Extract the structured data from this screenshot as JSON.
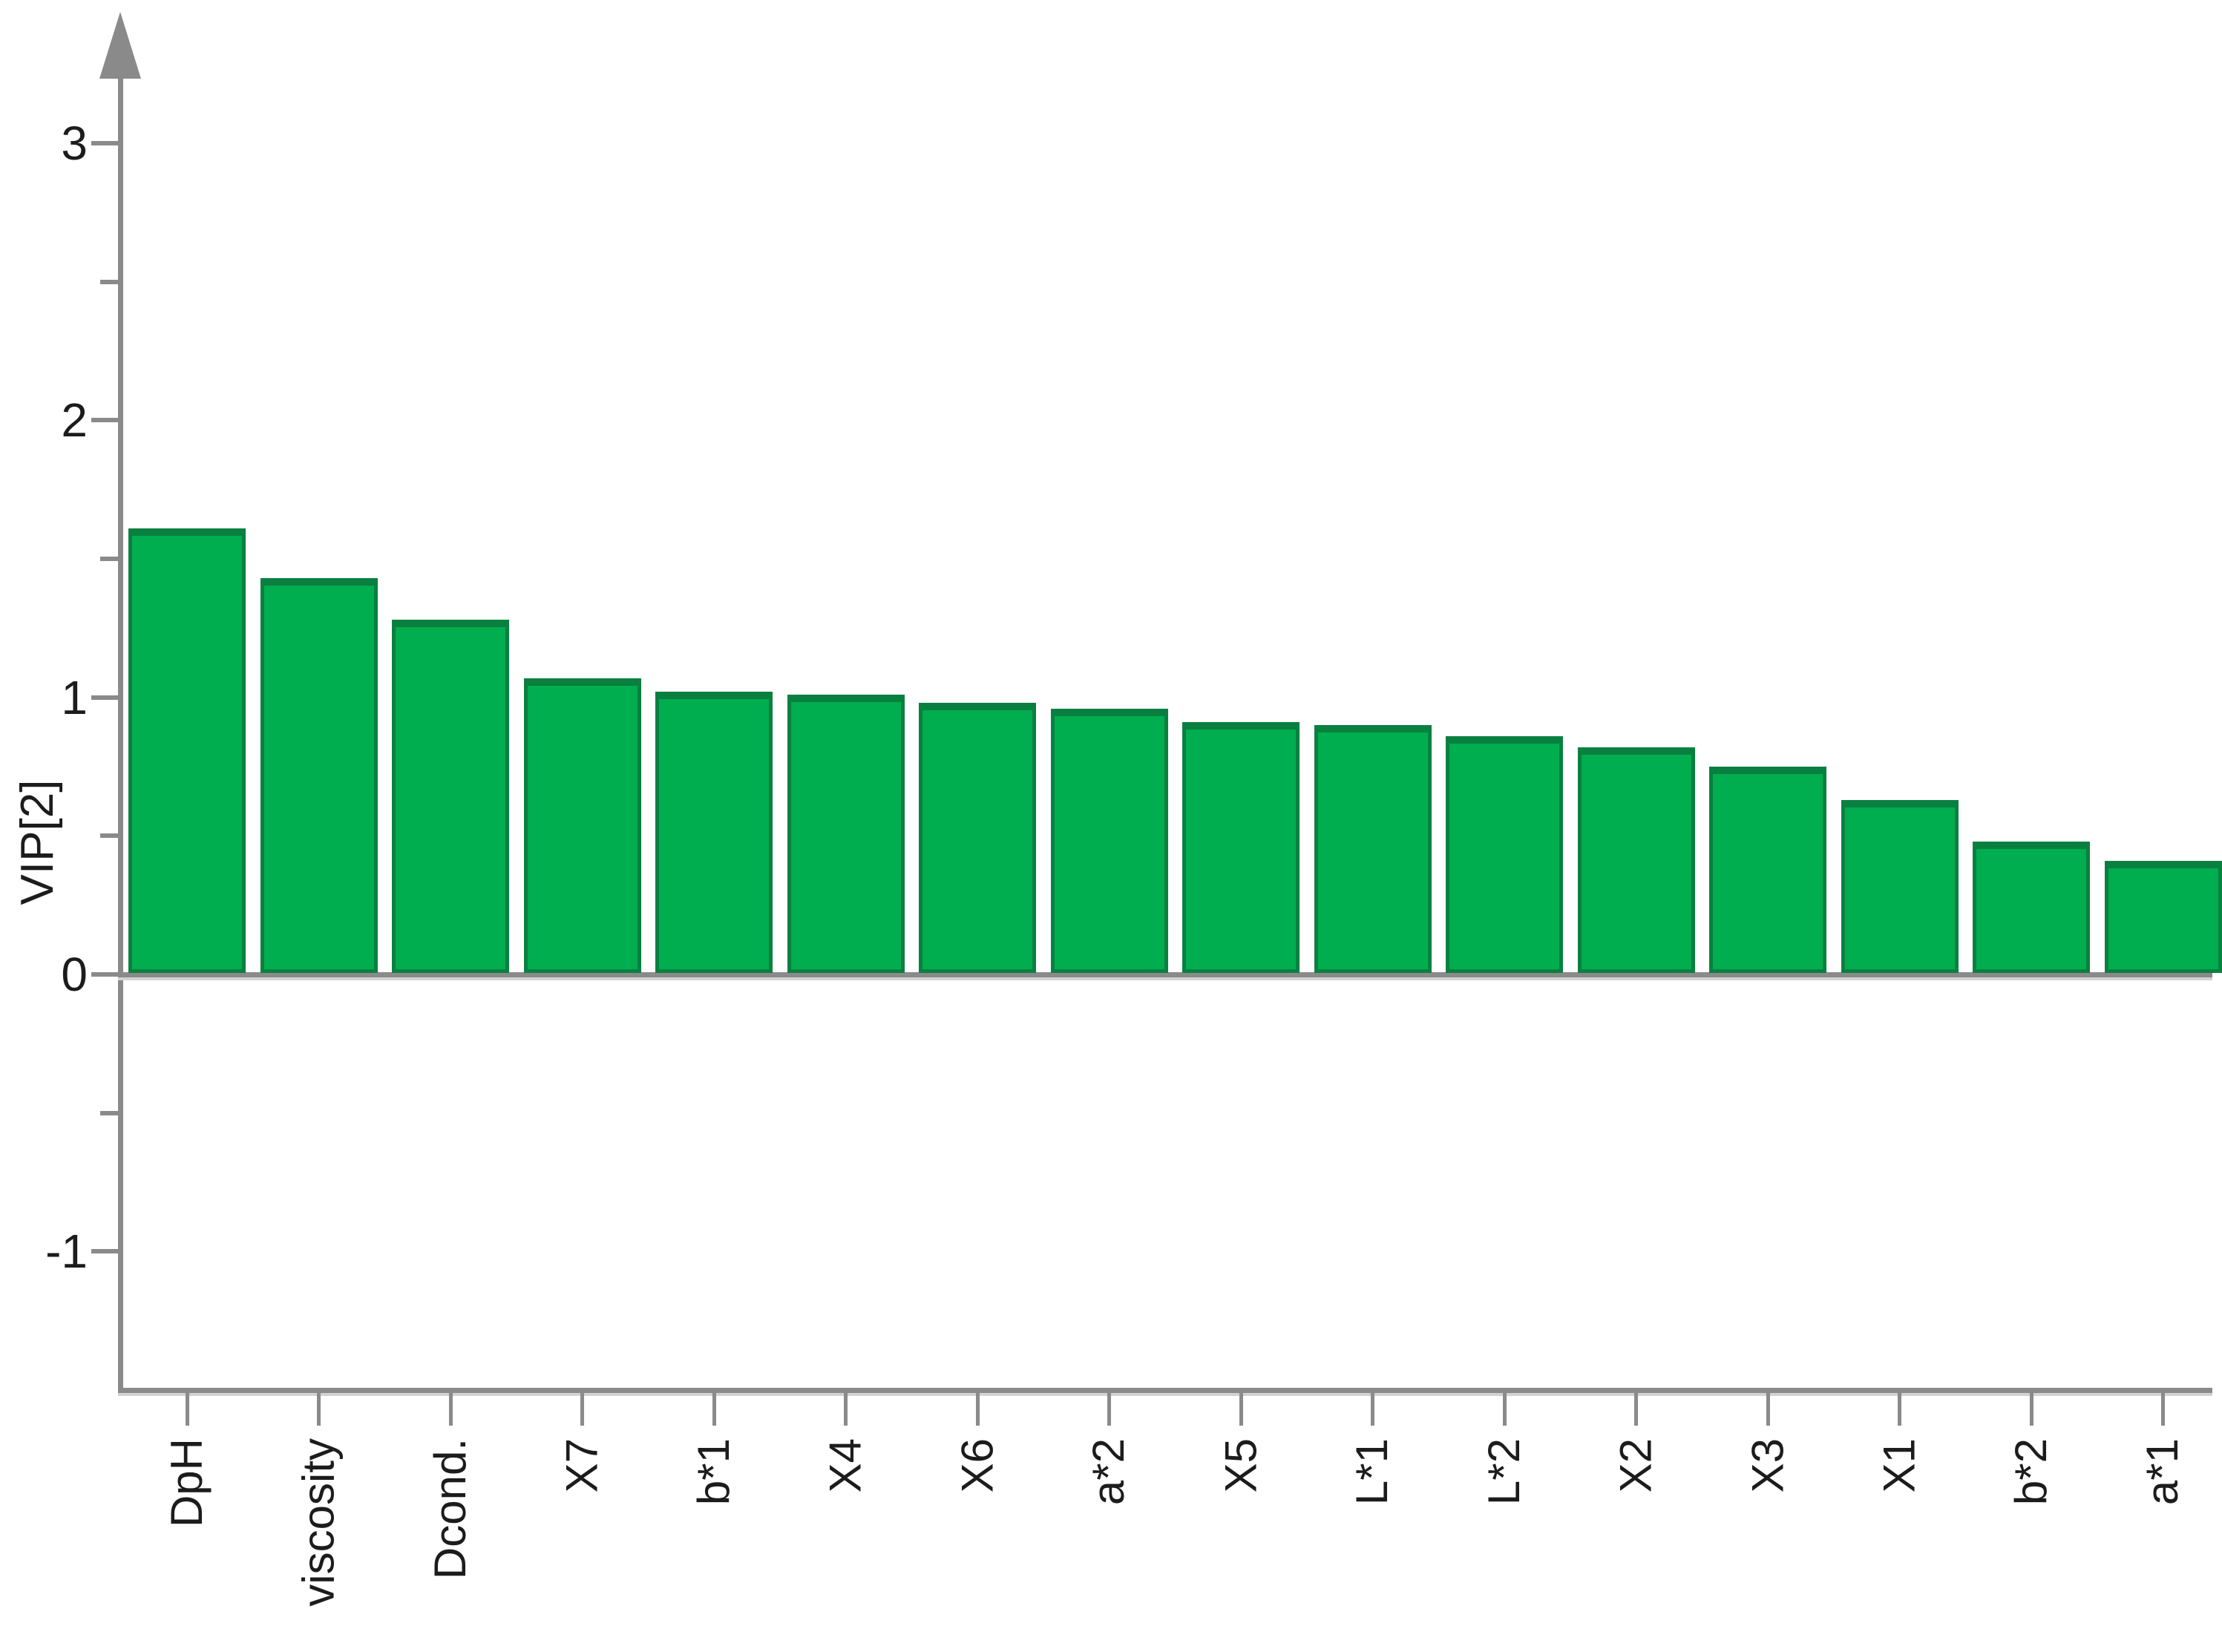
{
  "chart_data": {
    "type": "bar",
    "title": "",
    "xlabel": "",
    "ylabel": "VIP[2]",
    "categories": [
      "DpH",
      "viscosity",
      "Dcond.",
      "X7",
      "b*1",
      "X4",
      "X6",
      "a*2",
      "X5",
      "L*1",
      "L*2",
      "X2",
      "X3",
      "X1",
      "b*2",
      "a*1"
    ],
    "values": [
      1.61,
      1.43,
      1.28,
      1.07,
      1.02,
      1.01,
      0.98,
      0.96,
      0.91,
      0.9,
      0.86,
      0.82,
      0.75,
      0.63,
      0.48,
      0.41
    ],
    "ylim": [
      -1.5,
      3.35
    ],
    "y_major_ticks": [
      3,
      2,
      1,
      0,
      -1
    ],
    "y_major_tick_labels": [
      "3",
      "2",
      "1",
      "0",
      "-1"
    ],
    "y_minor_ticks": [
      2.5,
      1.5,
      0.5,
      -0.5
    ],
    "grid": false,
    "legend": null,
    "colors": {
      "bar_fill": "#00AD4F",
      "bar_border": "#0A8040",
      "axis": "#8A8A8A",
      "text": "#1C1C1C"
    }
  }
}
